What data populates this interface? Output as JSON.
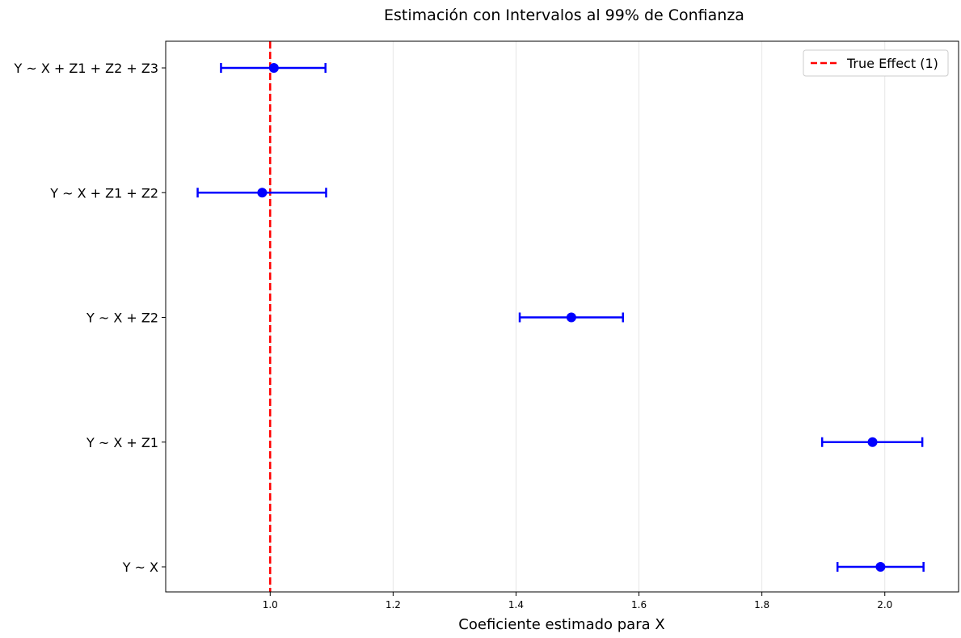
{
  "chart_data": {
    "type": "scatter",
    "title": "Estimación con Intervalos al 99% de Confianza",
    "xlabel": "Coeficiente estimado para X",
    "ylabel": "",
    "xlim": [
      0.83,
      2.12
    ],
    "xticks": [
      "1.0",
      "1.2",
      "1.4",
      "1.6",
      "1.8",
      "2.0"
    ],
    "xtick_values": [
      1.0,
      1.2,
      1.4,
      1.6,
      1.8,
      2.0
    ],
    "grid": "x-axis vertical lines",
    "categories": [
      "Y ~ X",
      "Y ~ X + Z1",
      "Y ~ X + Z2",
      "Y ~ X + Z1 + Z2",
      "Y ~ X + Z1 + Z2 + Z3"
    ],
    "series": [
      {
        "name": "",
        "estimates": [
          1.993,
          1.98,
          1.49,
          0.987,
          1.006
        ],
        "ci_lower": [
          1.923,
          1.898,
          1.406,
          0.882,
          0.92
        ],
        "ci_upper": [
          2.063,
          2.061,
          1.574,
          1.091,
          1.09
        ]
      }
    ],
    "reference_line": {
      "x": 1.0,
      "label": "True Effect (1)"
    },
    "legend": {
      "position": "top-right",
      "entries": [
        "True Effect (1)"
      ]
    },
    "colors": {
      "estimate": "#0000ff",
      "reference": "#ff0000",
      "grid": "#e6e6e6"
    }
  }
}
